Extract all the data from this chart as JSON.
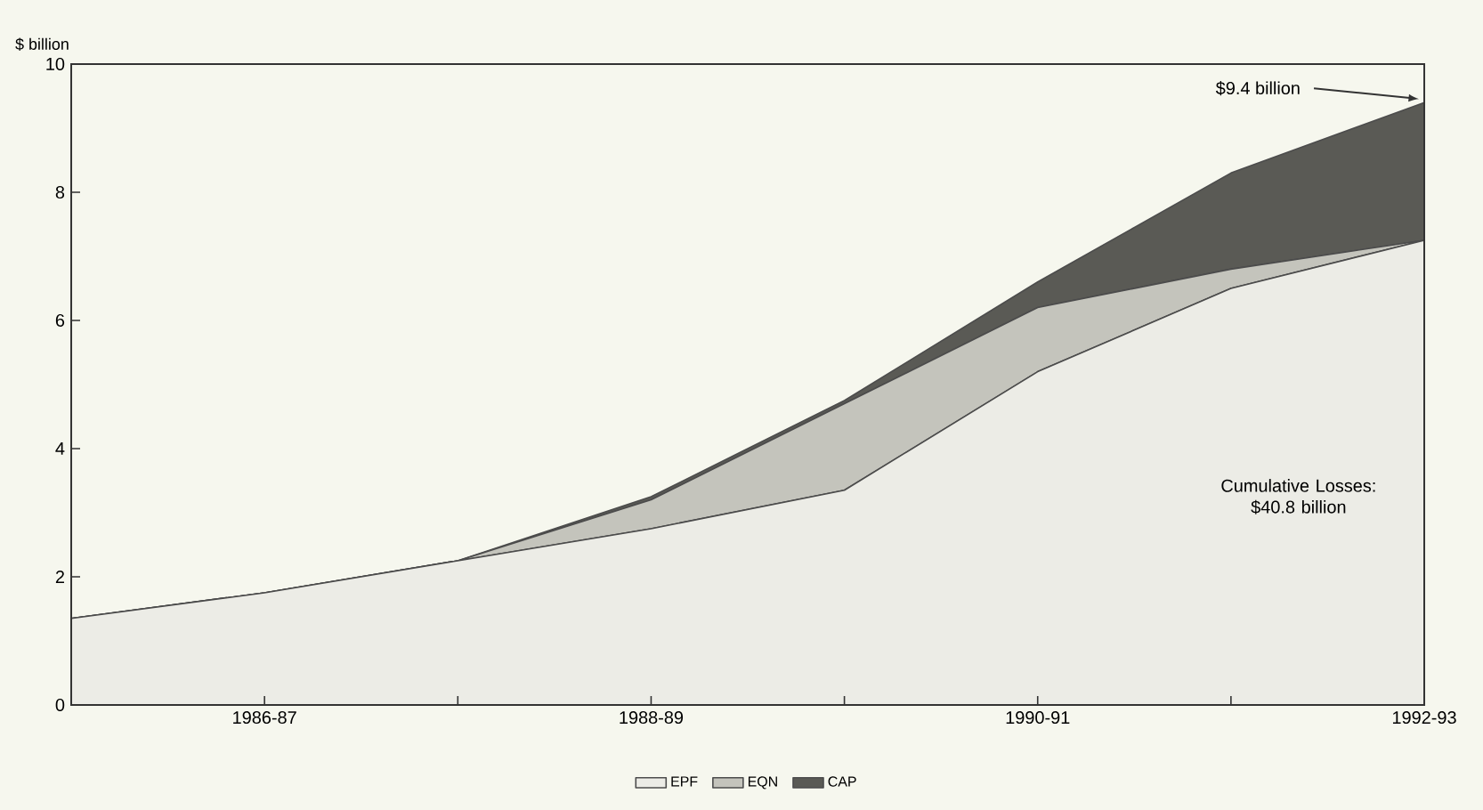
{
  "chart_data": {
    "type": "area",
    "stacked": true,
    "ylabel": "$ billion",
    "categories": [
      null,
      "1986-87",
      null,
      "1988-89",
      null,
      "1990-91",
      null,
      "1992-93"
    ],
    "series": [
      {
        "name": "EPF",
        "color": "#ecece6",
        "values": [
          1.35,
          1.75,
          2.25,
          2.75,
          3.35,
          5.2,
          6.5,
          7.25
        ]
      },
      {
        "name": "EQN",
        "color": "#c4c4bc",
        "values": [
          0,
          0,
          0,
          0.45,
          1.35,
          1.0,
          0.3,
          0
        ]
      },
      {
        "name": "CAP",
        "color": "#5a5a55",
        "values": [
          0,
          0,
          0,
          0.05,
          0.05,
          0.4,
          1.5,
          2.15
        ]
      }
    ],
    "ylim": [
      0,
      10
    ],
    "yticks": [
      0,
      2,
      4,
      6,
      8,
      10
    ],
    "grid": false,
    "legend": "bottom",
    "annotations": [
      {
        "text": "$9.4 billion",
        "x": "1992-93",
        "y": 9.4
      },
      "Cumulative Losses: $40.8 billion"
    ]
  }
}
